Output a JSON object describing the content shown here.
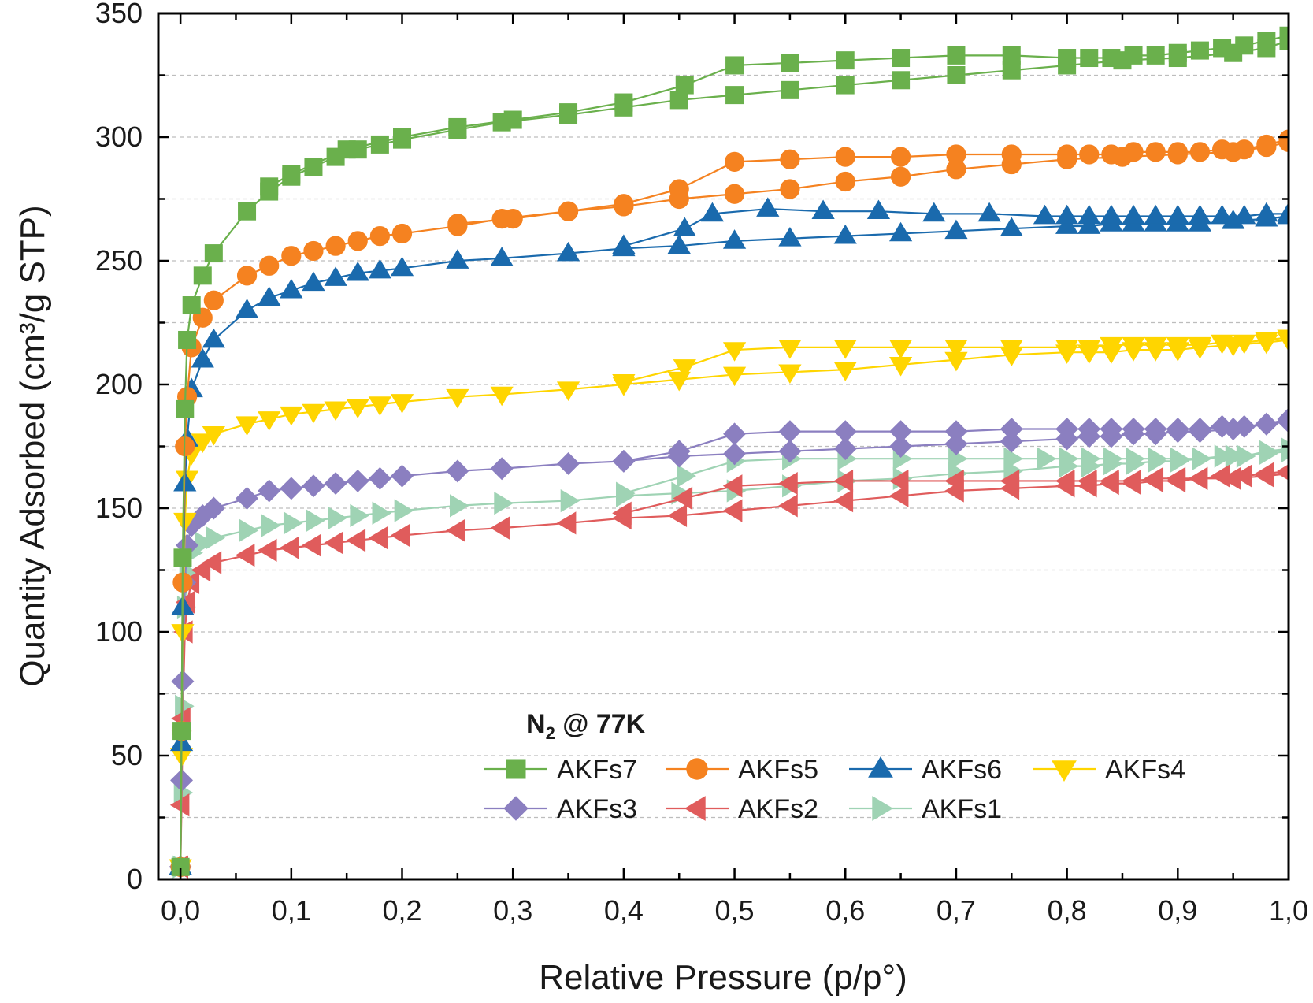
{
  "chart_data": {
    "type": "line",
    "xlabel": "Relative Pressure (p/p°)",
    "ylabel": "Quantity Adsorbed (cm³/g STP)",
    "xlim": [
      -0.02,
      1.0
    ],
    "ylim": [
      0,
      350
    ],
    "xticks": [
      0,
      0.1,
      0.2,
      0.3,
      0.4,
      0.5,
      0.6,
      0.7,
      0.8,
      0.9,
      1.0
    ],
    "xtick_labels": [
      "0,0",
      "0,1",
      "0,2",
      "0,3",
      "0,4",
      "0,5",
      "0,6",
      "0,7",
      "0,8",
      "0,9",
      "1,0"
    ],
    "yticks": [
      0,
      50,
      100,
      150,
      200,
      250,
      300,
      350
    ],
    "ytick_labels": [
      "0",
      "50",
      "100",
      "150",
      "200",
      "250",
      "300",
      "350"
    ],
    "grid": "horizontal dashed",
    "annotation": {
      "main": "N",
      "sub": "2",
      "rest": " @ 77K"
    },
    "legend_position": "lower-right",
    "series": [
      {
        "name": "AKFs7",
        "color": "#6ab04c",
        "marker": "square",
        "adsorption": {
          "x": [
            0.0,
            0.001,
            0.002,
            0.004,
            0.006,
            0.01,
            0.02,
            0.03,
            0.06,
            0.08,
            0.1,
            0.12,
            0.14,
            0.16,
            0.18,
            0.2,
            0.25,
            0.29,
            0.35,
            0.4,
            0.45,
            0.5,
            0.55,
            0.6,
            0.65,
            0.7,
            0.75,
            0.8,
            0.85,
            0.9,
            0.95,
            0.98,
            1.0
          ],
          "y": [
            5,
            60,
            130,
            190,
            218,
            232,
            244,
            253,
            270,
            278,
            284,
            288,
            292,
            295,
            297,
            299,
            303,
            306,
            309,
            312,
            315,
            317,
            319,
            321,
            323,
            325,
            327,
            329,
            331,
            332,
            334,
            336,
            339
          ]
        },
        "desorption": {
          "x": [
            1.0,
            0.98,
            0.96,
            0.94,
            0.92,
            0.9,
            0.88,
            0.86,
            0.84,
            0.82,
            0.8,
            0.75,
            0.7,
            0.65,
            0.6,
            0.55,
            0.5,
            0.455,
            0.4,
            0.35,
            0.3,
            0.25,
            0.2,
            0.15,
            0.1,
            0.08
          ],
          "y": [
            341,
            339,
            337,
            336,
            335,
            334,
            333,
            333,
            332,
            332,
            332,
            333,
            333,
            332,
            331,
            330,
            329,
            321,
            314,
            310,
            307,
            304,
            300,
            295,
            285,
            280
          ]
        }
      },
      {
        "name": "AKFs5",
        "color": "#f58220",
        "marker": "circle",
        "adsorption": {
          "x": [
            0.0,
            0.001,
            0.002,
            0.004,
            0.006,
            0.01,
            0.02,
            0.03,
            0.06,
            0.08,
            0.1,
            0.12,
            0.14,
            0.16,
            0.18,
            0.2,
            0.25,
            0.29,
            0.35,
            0.4,
            0.45,
            0.5,
            0.55,
            0.6,
            0.65,
            0.7,
            0.75,
            0.8,
            0.85,
            0.9,
            0.95,
            0.98,
            1.0
          ],
          "y": [
            5,
            60,
            120,
            175,
            195,
            215,
            227,
            234,
            244,
            248,
            252,
            254,
            256,
            258,
            260,
            261,
            264,
            267,
            270,
            272,
            275,
            277,
            279,
            282,
            284,
            287,
            289,
            291,
            292,
            293,
            294,
            296,
            298
          ]
        },
        "desorption": {
          "x": [
            1.0,
            0.98,
            0.96,
            0.94,
            0.92,
            0.9,
            0.88,
            0.86,
            0.84,
            0.82,
            0.8,
            0.75,
            0.7,
            0.65,
            0.6,
            0.55,
            0.5,
            0.45,
            0.4,
            0.35,
            0.3,
            0.25
          ],
          "y": [
            299,
            297,
            295,
            295,
            294,
            294,
            294,
            294,
            293,
            293,
            293,
            293,
            293,
            292,
            292,
            291,
            290,
            279,
            273,
            270,
            267,
            265
          ]
        }
      },
      {
        "name": "AKFs6",
        "color": "#1a6aad",
        "marker": "triangle-up",
        "adsorption": {
          "x": [
            0.0,
            0.001,
            0.002,
            0.004,
            0.006,
            0.01,
            0.02,
            0.03,
            0.06,
            0.08,
            0.1,
            0.12,
            0.14,
            0.16,
            0.18,
            0.2,
            0.25,
            0.29,
            0.35,
            0.4,
            0.45,
            0.5,
            0.55,
            0.6,
            0.65,
            0.7,
            0.75,
            0.8,
            0.82,
            0.84,
            0.86,
            0.88,
            0.9,
            0.92,
            0.95,
            0.98,
            1.0
          ],
          "y": [
            5,
            55,
            110,
            160,
            178,
            198,
            210,
            218,
            230,
            235,
            238,
            241,
            243,
            245,
            246,
            247,
            250,
            251,
            253,
            255,
            256,
            258,
            259,
            260,
            261,
            262,
            263,
            264,
            264,
            265,
            265,
            265,
            265,
            265,
            266,
            267,
            268
          ]
        },
        "desorption": {
          "x": [
            1.0,
            0.98,
            0.96,
            0.94,
            0.92,
            0.9,
            0.88,
            0.86,
            0.84,
            0.82,
            0.8,
            0.78,
            0.73,
            0.68,
            0.63,
            0.58,
            0.53,
            0.48,
            0.455,
            0.4
          ],
          "y": [
            269,
            269,
            268,
            268,
            268,
            268,
            268,
            268,
            268,
            268,
            268,
            268,
            269,
            269,
            270,
            270,
            271,
            269,
            263,
            256
          ]
        }
      },
      {
        "name": "AKFs4",
        "color": "#ffd500",
        "marker": "triangle-down",
        "adsorption": {
          "x": [
            0.0,
            0.001,
            0.002,
            0.004,
            0.006,
            0.01,
            0.02,
            0.03,
            0.06,
            0.08,
            0.1,
            0.12,
            0.14,
            0.16,
            0.18,
            0.2,
            0.25,
            0.29,
            0.35,
            0.4,
            0.45,
            0.5,
            0.55,
            0.6,
            0.65,
            0.7,
            0.75,
            0.8,
            0.82,
            0.84,
            0.86,
            0.88,
            0.9,
            0.92,
            0.95,
            0.98,
            1.0
          ],
          "y": [
            5,
            50,
            100,
            145,
            162,
            172,
            177,
            180,
            184,
            186,
            188,
            189,
            190,
            191,
            192,
            193,
            195,
            196,
            198,
            200,
            202,
            204,
            205,
            206,
            208,
            210,
            212,
            213,
            213,
            213,
            214,
            214,
            214,
            215,
            216,
            217,
            218
          ]
        },
        "desorption": {
          "x": [
            1.0,
            0.98,
            0.96,
            0.94,
            0.92,
            0.9,
            0.88,
            0.86,
            0.84,
            0.82,
            0.8,
            0.75,
            0.7,
            0.65,
            0.6,
            0.55,
            0.5,
            0.455,
            0.4
          ],
          "y": [
            219,
            218,
            217,
            217,
            216,
            216,
            216,
            216,
            216,
            215,
            215,
            215,
            215,
            215,
            215,
            215,
            214,
            207,
            201
          ]
        }
      },
      {
        "name": "AKFs3",
        "color": "#8b7fc0",
        "marker": "diamond",
        "adsorption": {
          "x": [
            0.0,
            0.001,
            0.002,
            0.004,
            0.006,
            0.01,
            0.02,
            0.03,
            0.06,
            0.08,
            0.1,
            0.12,
            0.14,
            0.16,
            0.18,
            0.2,
            0.25,
            0.29,
            0.35,
            0.4,
            0.45,
            0.5,
            0.55,
            0.6,
            0.65,
            0.7,
            0.75,
            0.8,
            0.82,
            0.84,
            0.86,
            0.88,
            0.9,
            0.92,
            0.95,
            0.98,
            1.0
          ],
          "y": [
            5,
            40,
            80,
            120,
            135,
            143,
            147,
            150,
            154,
            157,
            158,
            159,
            160,
            161,
            162,
            163,
            165,
            166,
            168,
            169,
            171,
            172,
            173,
            174,
            175,
            176,
            177,
            178,
            179,
            179,
            180,
            180,
            181,
            181,
            182,
            184,
            185
          ]
        },
        "desorption": {
          "x": [
            1.0,
            0.98,
            0.96,
            0.94,
            0.92,
            0.9,
            0.88,
            0.86,
            0.84,
            0.82,
            0.8,
            0.75,
            0.7,
            0.65,
            0.6,
            0.55,
            0.5,
            0.45,
            0.4
          ],
          "y": [
            186,
            184,
            183,
            183,
            182,
            182,
            182,
            182,
            182,
            182,
            182,
            182,
            181,
            181,
            181,
            181,
            180,
            173,
            169
          ]
        }
      },
      {
        "name": "AKFs2",
        "color": "#e05c5c",
        "marker": "triangle-left",
        "adsorption": {
          "x": [
            0.0,
            0.001,
            0.002,
            0.004,
            0.006,
            0.01,
            0.02,
            0.03,
            0.06,
            0.08,
            0.1,
            0.12,
            0.14,
            0.16,
            0.18,
            0.2,
            0.25,
            0.29,
            0.35,
            0.4,
            0.45,
            0.5,
            0.55,
            0.6,
            0.65,
            0.7,
            0.75,
            0.8,
            0.82,
            0.84,
            0.86,
            0.88,
            0.9,
            0.92,
            0.95,
            0.98,
            1.0
          ],
          "y": [
            5,
            30,
            65,
            100,
            112,
            120,
            125,
            128,
            131,
            133,
            134,
            135,
            136,
            137,
            138,
            139,
            141,
            142,
            144,
            146,
            147,
            149,
            151,
            153,
            155,
            157,
            158,
            159,
            159,
            160,
            160,
            161,
            161,
            162,
            162,
            163,
            164
          ]
        },
        "desorption": {
          "x": [
            1.0,
            0.98,
            0.96,
            0.94,
            0.92,
            0.9,
            0.88,
            0.86,
            0.84,
            0.82,
            0.8,
            0.75,
            0.7,
            0.65,
            0.6,
            0.55,
            0.5,
            0.455,
            0.4
          ],
          "y": [
            165,
            164,
            163,
            163,
            162,
            162,
            162,
            161,
            161,
            161,
            161,
            161,
            161,
            161,
            161,
            160,
            159,
            154,
            148
          ]
        }
      },
      {
        "name": "AKFs1",
        "color": "#9fd3b4",
        "marker": "triangle-right",
        "adsorption": {
          "x": [
            0.0,
            0.001,
            0.002,
            0.004,
            0.006,
            0.01,
            0.02,
            0.03,
            0.06,
            0.08,
            0.1,
            0.12,
            0.14,
            0.16,
            0.18,
            0.2,
            0.25,
            0.29,
            0.35,
            0.4,
            0.45,
            0.5,
            0.55,
            0.6,
            0.65,
            0.7,
            0.75,
            0.8,
            0.82,
            0.84,
            0.86,
            0.88,
            0.9,
            0.92,
            0.95,
            0.98,
            1.0
          ],
          "y": [
            5,
            35,
            70,
            110,
            124,
            132,
            136,
            138,
            141,
            143,
            144,
            145,
            146,
            147,
            148,
            149,
            151,
            152,
            153,
            155,
            156,
            157,
            159,
            161,
            162,
            164,
            165,
            167,
            167,
            168,
            168,
            169,
            169,
            170,
            171,
            172,
            173
          ]
        },
        "desorption": {
          "x": [
            1.0,
            0.98,
            0.96,
            0.94,
            0.92,
            0.9,
            0.88,
            0.86,
            0.84,
            0.82,
            0.8,
            0.78,
            0.75,
            0.7,
            0.65,
            0.6,
            0.55,
            0.5,
            0.455,
            0.4
          ],
          "y": [
            174,
            173,
            171,
            171,
            170,
            170,
            170,
            170,
            170,
            170,
            170,
            170,
            170,
            170,
            170,
            170,
            170,
            169,
            163,
            156
          ]
        }
      }
    ]
  }
}
